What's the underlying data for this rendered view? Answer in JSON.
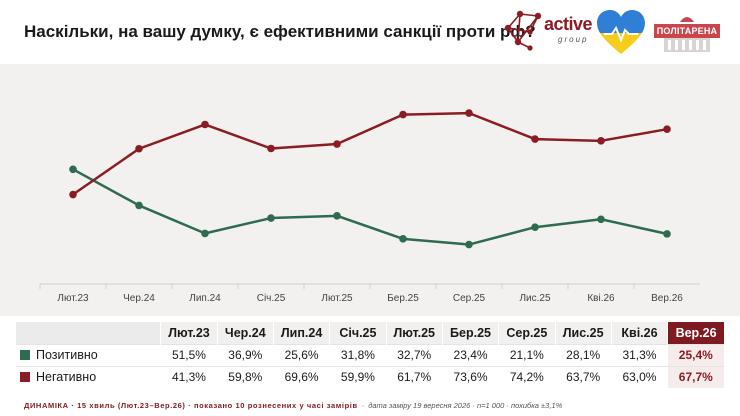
{
  "header": {
    "title": "Наскільки, на вашу думку, є ефективними санкції проти рф?",
    "logos": {
      "active": {
        "brand": "active",
        "sub": "group"
      },
      "politarena": "ПОЛІТАРЕНА"
    }
  },
  "colors": {
    "positive": "#2e6b4f",
    "negative": "#8b1c24",
    "highlight": "#7d1a22",
    "chart_bg": "#f2f1ef"
  },
  "chart_data": {
    "type": "line",
    "categories": [
      "Лют.23",
      "Чер.24",
      "Лип.24",
      "Січ.25",
      "Лют.25",
      "Бер.25",
      "Сер.25",
      "Лис.25",
      "Кві.26",
      "Вер.26"
    ],
    "series": [
      {
        "name": "Позитивно",
        "color": "#2e6b4f",
        "values": [
          51.5,
          36.9,
          25.6,
          31.8,
          32.7,
          23.4,
          21.1,
          28.1,
          31.3,
          25.4
        ]
      },
      {
        "name": "Негативно",
        "color": "#8b1c24",
        "values": [
          41.3,
          59.8,
          69.6,
          59.9,
          61.7,
          73.6,
          74.2,
          63.7,
          63.0,
          67.7
        ]
      }
    ],
    "ylim": [
      0,
      100
    ],
    "grid": false,
    "title": "",
    "xlabel": "",
    "ylabel": ""
  },
  "table": {
    "headers": [
      "Лют.23",
      "Чер.24",
      "Лип.24",
      "Січ.25",
      "Лют.25",
      "Бер.25",
      "Сер.25",
      "Лис.25",
      "Кві.26",
      "Вер.26"
    ],
    "rows": [
      {
        "label": "Позитивно",
        "values": [
          "51,5%",
          "36,9%",
          "25,6%",
          "31,8%",
          "32,7%",
          "23,4%",
          "21,1%",
          "28,1%",
          "31,3%",
          "25,4%"
        ]
      },
      {
        "label": "Негативно",
        "values": [
          "41,3%",
          "59,8%",
          "69,6%",
          "59,9%",
          "61,7%",
          "73,6%",
          "74,2%",
          "63,7%",
          "63,0%",
          "67,7%"
        ]
      }
    ]
  },
  "footer": {
    "main": "ДИНАМІКА · 15 хвиль (Лют.23–Вер.26) · показано 10 рознесених у часі замірів",
    "separator": "·",
    "note": "дата заміру 19 вересня 2026 · n=1 000 · похибка ±3,1%"
  }
}
